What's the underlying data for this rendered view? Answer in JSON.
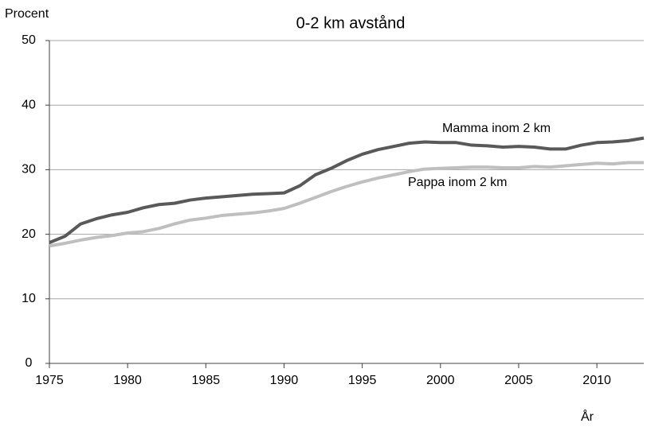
{
  "chart_data": {
    "type": "line",
    "title": "0-2 km avstånd",
    "y_label": "Procent",
    "x_label": "År",
    "x": [
      1975,
      1976,
      1977,
      1978,
      1979,
      1980,
      1981,
      1982,
      1983,
      1984,
      1985,
      1986,
      1987,
      1988,
      1989,
      1990,
      1991,
      1992,
      1993,
      1994,
      1995,
      1996,
      1997,
      1998,
      1999,
      2000,
      2001,
      2002,
      2003,
      2004,
      2005,
      2006,
      2007,
      2008,
      2009,
      2010,
      2011,
      2012,
      2013
    ],
    "series": [
      {
        "name": "Mamma inom 2 km",
        "color": "#595959",
        "values": [
          18.7,
          19.7,
          21.6,
          22.4,
          23.0,
          23.4,
          24.1,
          24.6,
          24.8,
          25.3,
          25.6,
          25.8,
          26.0,
          26.2,
          26.3,
          26.4,
          27.5,
          29.2,
          30.2,
          31.4,
          32.4,
          33.1,
          33.6,
          34.1,
          34.3,
          34.2,
          34.2,
          33.8,
          33.7,
          33.5,
          33.6,
          33.5,
          33.2,
          33.2,
          33.8,
          34.2,
          34.3,
          34.5,
          34.9
        ]
      },
      {
        "name": "Pappa inom 2 km",
        "color": "#bfbfbf",
        "values": [
          18.2,
          18.6,
          19.1,
          19.5,
          19.8,
          20.2,
          20.4,
          20.9,
          21.6,
          22.2,
          22.5,
          22.9,
          23.1,
          23.3,
          23.6,
          24.0,
          24.8,
          25.7,
          26.6,
          27.4,
          28.1,
          28.7,
          29.2,
          29.7,
          30.1,
          30.2,
          30.3,
          30.4,
          30.4,
          30.3,
          30.3,
          30.5,
          30.4,
          30.6,
          30.8,
          31.0,
          30.9,
          31.1,
          31.1
        ]
      }
    ],
    "xlim": [
      1975,
      2013
    ],
    "xticks": [
      1975,
      1980,
      1985,
      1990,
      1995,
      2000,
      2005,
      2010
    ],
    "ylim": [
      0,
      50
    ],
    "yticks": [
      0,
      10,
      20,
      30,
      40,
      50
    ],
    "grid": true
  }
}
